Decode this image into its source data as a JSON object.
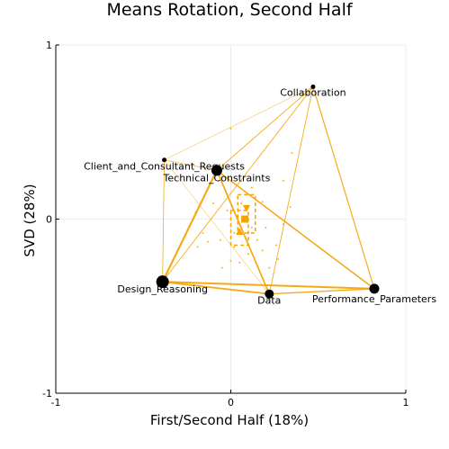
{
  "chart_data": {
    "type": "scatter",
    "title": "Means Rotation, Second Half",
    "xlabel": "First/Second Half (18%)",
    "ylabel": "SVD (28%)",
    "xlim": [
      -1,
      1
    ],
    "ylim": [
      -1,
      1
    ],
    "xticks": [
      -1,
      0,
      1
    ],
    "yticks": [
      -1,
      0,
      1
    ],
    "xtick_labels": [
      "-1",
      "0",
      "1"
    ],
    "ytick_labels": [
      "-1",
      "0",
      "1"
    ],
    "grid": true,
    "colors": {
      "network": "#f5a300",
      "node": "#000000",
      "grid": "#ececec"
    },
    "nodes": [
      {
        "label": "Collaboration",
        "x": 0.47,
        "y": 0.76,
        "size": 2.5
      },
      {
        "label": "Client_and_Consultant_Requests",
        "x": -0.38,
        "y": 0.34,
        "size": 2.5
      },
      {
        "label": "Technical_Constraints",
        "x": -0.08,
        "y": 0.28,
        "size": 6
      },
      {
        "label": "Design_Reasoning",
        "x": -0.39,
        "y": -0.36,
        "size": 7
      },
      {
        "label": "Data",
        "x": 0.22,
        "y": -0.43,
        "size": 5
      },
      {
        "label": "Performance_Parameters",
        "x": 0.82,
        "y": -0.4,
        "size": 5.5
      }
    ],
    "edges": [
      {
        "from": "Technical_Constraints",
        "to": "Design_Reasoning",
        "weight": 2.2
      },
      {
        "from": "Technical_Constraints",
        "to": "Data",
        "weight": 1.8
      },
      {
        "from": "Technical_Constraints",
        "to": "Performance_Parameters",
        "weight": 1.6
      },
      {
        "from": "Design_Reasoning",
        "to": "Data",
        "weight": 1.9
      },
      {
        "from": "Design_Reasoning",
        "to": "Performance_Parameters",
        "weight": 2.0
      },
      {
        "from": "Data",
        "to": "Performance_Parameters",
        "weight": 1.4
      },
      {
        "from": "Collaboration",
        "to": "Performance_Parameters",
        "weight": 1.2
      },
      {
        "from": "Collaboration",
        "to": "Data",
        "weight": 0.9
      },
      {
        "from": "Collaboration",
        "to": "Technical_Constraints",
        "weight": 0.9
      },
      {
        "from": "Collaboration",
        "to": "Design_Reasoning",
        "weight": 0.9
      },
      {
        "from": "Collaboration",
        "to": "Client_and_Consultant_Requests",
        "weight": 0.5
      },
      {
        "from": "Client_and_Consultant_Requests",
        "to": "Design_Reasoning",
        "weight": 0.8
      },
      {
        "from": "Client_and_Consultant_Requests",
        "to": "Technical_Constraints",
        "weight": 0.6
      },
      {
        "from": "Client_and_Consultant_Requests",
        "to": "Data",
        "weight": 0.5
      }
    ],
    "means": [
      {
        "shape": "square",
        "x": 0.08,
        "y": 0.0
      },
      {
        "shape": "triangle-down",
        "x": 0.09,
        "y": 0.06
      },
      {
        "shape": "triangle-up",
        "x": 0.05,
        "y": -0.07
      }
    ],
    "confidence_boxes": [
      {
        "x": [
          0.04,
          0.14
        ],
        "y": [
          -0.08,
          0.14
        ]
      },
      {
        "x": [
          0.0,
          0.1
        ],
        "y": [
          -0.15,
          0.05
        ]
      }
    ],
    "points": [
      [
        0.0,
        0.52
      ],
      [
        0.22,
        0.24
      ],
      [
        0.35,
        0.38
      ],
      [
        0.34,
        0.07
      ],
      [
        0.18,
        0.1
      ],
      [
        -0.1,
        0.09
      ],
      [
        -0.2,
        0.04
      ],
      [
        -0.16,
        -0.08
      ],
      [
        -0.13,
        -0.13
      ],
      [
        -0.06,
        -0.12
      ],
      [
        0.02,
        -0.16
      ],
      [
        0.05,
        -0.25
      ],
      [
        0.1,
        -0.2
      ],
      [
        0.15,
        -0.12
      ],
      [
        0.2,
        -0.05
      ],
      [
        0.26,
        -0.15
      ],
      [
        0.12,
        0.18
      ],
      [
        0.27,
        -0.23
      ],
      [
        0.0,
        -0.24
      ],
      [
        -0.05,
        -0.28
      ],
      [
        0.12,
        -0.05
      ],
      [
        -0.02,
        0.05
      ],
      [
        0.02,
        -0.08
      ],
      [
        0.18,
        -0.18
      ],
      [
        0.3,
        0.22
      ],
      [
        -0.12,
        0.2
      ],
      [
        0.06,
        0.09
      ],
      [
        0.3,
        -0.03
      ],
      [
        0.22,
        -0.28
      ],
      [
        -0.19,
        -0.16
      ]
    ]
  }
}
